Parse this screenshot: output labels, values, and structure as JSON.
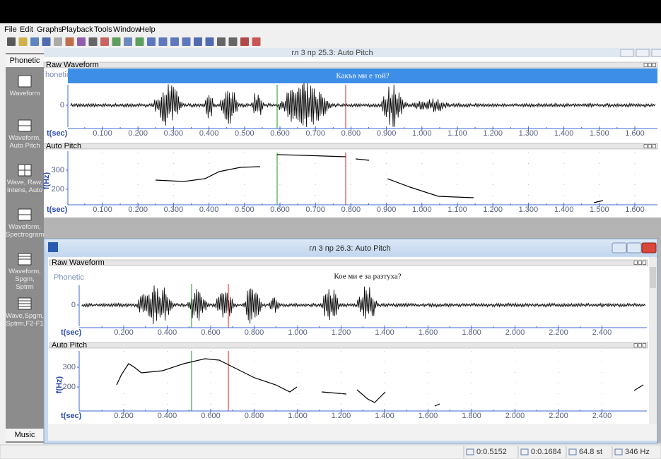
{
  "menu": [
    "File",
    "Edit",
    "Graphs",
    "Playback",
    "Tools",
    "Window",
    "Help"
  ],
  "sidebar": {
    "tab": "Phonetic",
    "items": [
      "Waveform",
      "Waveform, Auto Pitch",
      "Wave, Raw, Intens, Auto",
      "Waveform, Spectrogram",
      "Waveform, Spgm, Sptrm",
      "Wave,Spgm, Sptrm,F2-F1"
    ],
    "bottom_tab": "Music"
  },
  "windows": [
    {
      "title": "гл 3 пр 25.3: Auto Pitch",
      "panes": [
        {
          "header": "Raw Waveform",
          "label": "honetic",
          "transcript": "Какъв ми е той?",
          "yticks": [
            "0"
          ],
          "x_axis_label": "t(sec)",
          "xticks": [
            "0.100",
            "0.200",
            "0.300",
            "0.400",
            "0.500",
            "0.600",
            "0.700",
            "0.800",
            "0.900",
            "1.000",
            "1.100",
            "1.200",
            "1.300",
            "1.400",
            "1.500",
            "1.600"
          ]
        },
        {
          "header": "Auto Pitch",
          "y_axis_label": "f(Hz)",
          "yticks": [
            "300",
            "200"
          ],
          "x_axis_label": "t(sec)",
          "xticks": [
            "0.100",
            "0.200",
            "0.300",
            "0.400",
            "0.500",
            "0.600",
            "0.700",
            "0.800",
            "0.900",
            "1.000",
            "1.100",
            "1.200",
            "1.300",
            "1.400",
            "1.500",
            "1.600"
          ]
        }
      ]
    },
    {
      "title": "гл 3 пр 26.3: Auto Pitch",
      "panes": [
        {
          "header": "Raw Waveform",
          "label": "Phonetic",
          "transcript": "Кое ми е за разтуха?",
          "yticks": [
            "0"
          ],
          "x_axis_label": "t(sec)",
          "xticks": [
            "0.200",
            "0.400",
            "0.600",
            "0.800",
            "1.000",
            "1.200",
            "1.400",
            "1.600",
            "1.800",
            "2.000",
            "2.200",
            "2.400"
          ]
        },
        {
          "header": "Auto Pitch",
          "y_axis_label": "f(Hz)",
          "yticks": [
            "300",
            "200"
          ],
          "x_axis_label": "t(sec)",
          "xticks": [
            "0.200",
            "0.400",
            "0.600",
            "0.800",
            "1.000",
            "1.200",
            "1.400",
            "1.600",
            "1.800",
            "2.000",
            "2.200",
            "2.400"
          ]
        }
      ]
    }
  ],
  "status": [
    "0:0.5152",
    "0:0.1684",
    "64.8 st",
    "346 Hz"
  ]
}
